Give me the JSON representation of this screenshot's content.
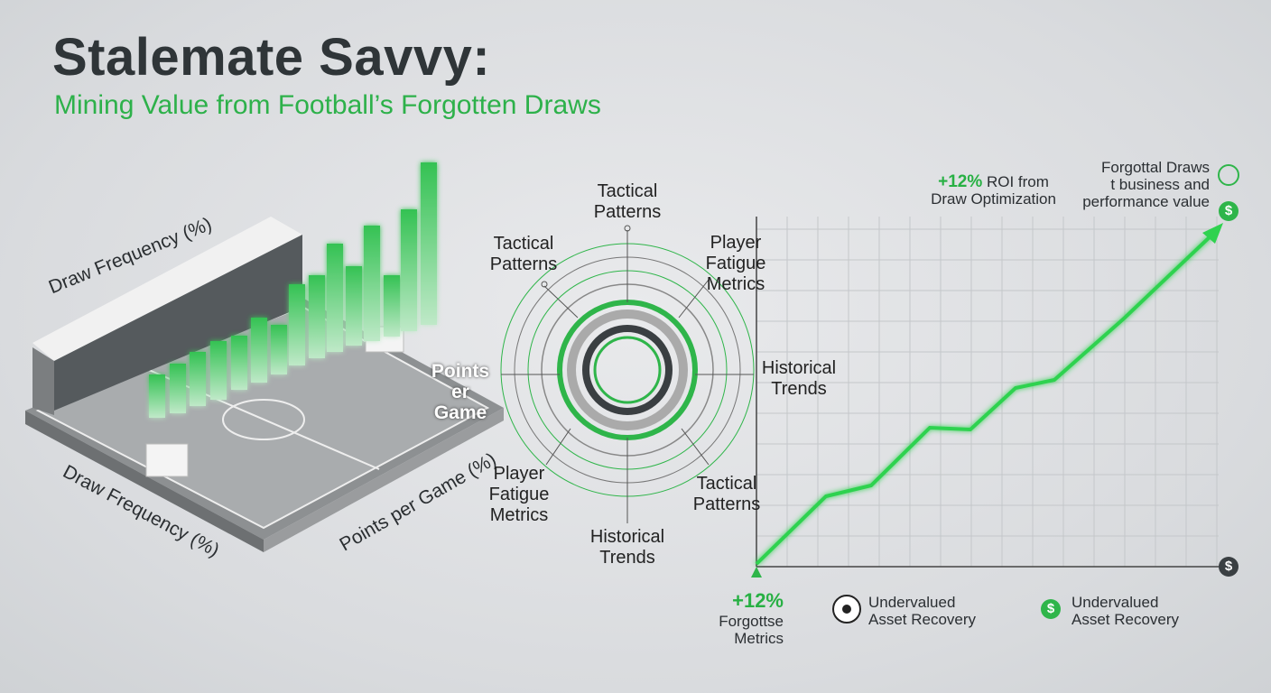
{
  "header": {
    "title": "Stalemate Savvy:",
    "subtitle": "Mining Value from Football’s Forgotten Draws"
  },
  "stadium": {
    "labels": [
      "Draw Frequency (%)",
      "Points er Game",
      "Draw Frequency (%)",
      "Points per Game (%)"
    ]
  },
  "radial": {
    "labels": [
      "Tactical Patterns",
      "Tactical Patterns",
      "Player Fatigue Metrics",
      "Historical Trends",
      "Tactical Patterns",
      "Historical Trends",
      "Player Fatigue Metrics"
    ]
  },
  "growth_chart": {
    "callout": {
      "highlight": "+12%",
      "text": "ROI from Draw Optimization"
    },
    "note": [
      "Forgottal Draws",
      "t business and",
      "performance value"
    ],
    "icons": [
      "$",
      "$"
    ],
    "footer": [
      {
        "highlight": "+12%",
        "text": "Forgottse Metrics"
      },
      {
        "text": "Undervalued Asset Recovery"
      },
      {
        "icon": "$",
        "text": "Undervalued Asset Recovery"
      }
    ]
  }
}
